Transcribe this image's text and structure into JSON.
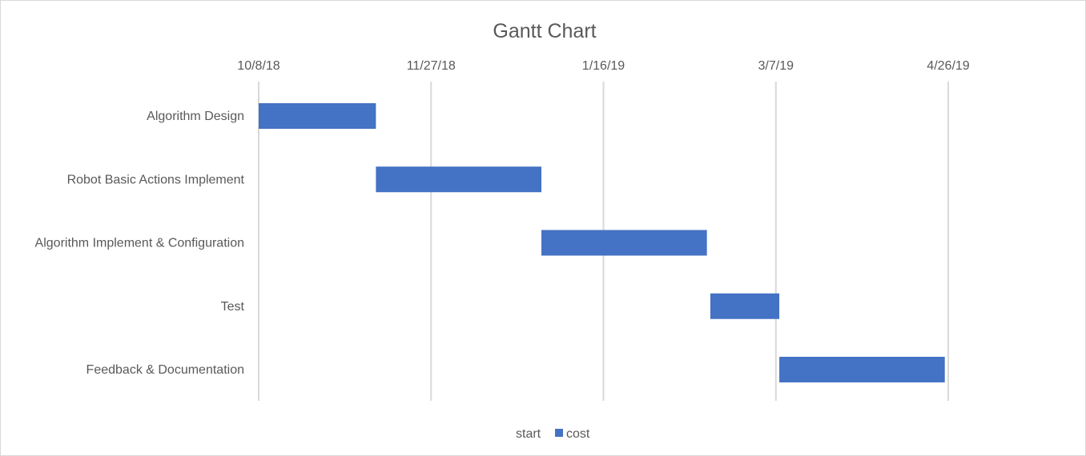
{
  "chart_data": {
    "type": "bar",
    "orientation": "horizontal",
    "stacked": true,
    "title": "Gantt Chart",
    "categories": [
      "Algorithm Design",
      "Robot Basic Actions Implement",
      "Algorithm Implement & Configuration",
      "Test",
      "Feedback & Documentation"
    ],
    "series": [
      {
        "name": "start",
        "values": [
          "2018-10-08",
          "2018-11-11",
          "2018-12-29",
          "2019-02-16",
          "2019-03-08"
        ],
        "color": "none"
      },
      {
        "name": "cost",
        "values": [
          34,
          48,
          48,
          20,
          48
        ],
        "value_unit": "days",
        "color": "#4472c4"
      }
    ],
    "x_axis": {
      "tick_labels": [
        "10/8/18",
        "11/27/18",
        "1/16/19",
        "3/7/19",
        "4/26/19"
      ],
      "position": "top",
      "range": [
        "10/8/18",
        "4/26/19"
      ]
    },
    "gridlines": true,
    "legend": {
      "position": "bottom",
      "entries": [
        "start",
        "cost"
      ]
    }
  }
}
